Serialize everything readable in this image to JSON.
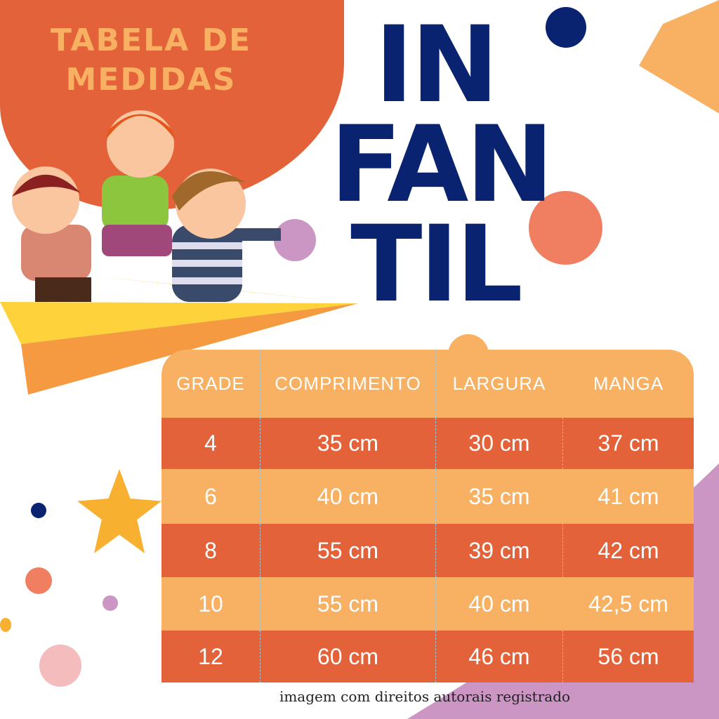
{
  "header": {
    "subtitle_line1": "TABELA DE",
    "subtitle_line2": "MEDIDAS",
    "title_lines": [
      "IN",
      "FAN",
      "TIL"
    ]
  },
  "colors": {
    "orange_dark": "#e4623a",
    "orange_light": "#f8b062",
    "navy": "#0a2370",
    "purple": "#cb95c4"
  },
  "table": {
    "columns": [
      "GRADE",
      "COMPRIMENTO",
      "LARGURA",
      "MANGA"
    ],
    "rows": [
      [
        "4",
        "35 cm",
        "30 cm",
        "37 cm"
      ],
      [
        "6",
        "40 cm",
        "35 cm",
        "41 cm"
      ],
      [
        "8",
        "55 cm",
        "39 cm",
        "42 cm"
      ],
      [
        "10",
        "55 cm",
        "40 cm",
        "42,5 cm"
      ],
      [
        "12",
        "60 cm",
        "46 cm",
        "56 cm"
      ]
    ]
  },
  "footer": "imagem com direitos autorais registrado",
  "illustration": "three-kids-on-paper-plane"
}
